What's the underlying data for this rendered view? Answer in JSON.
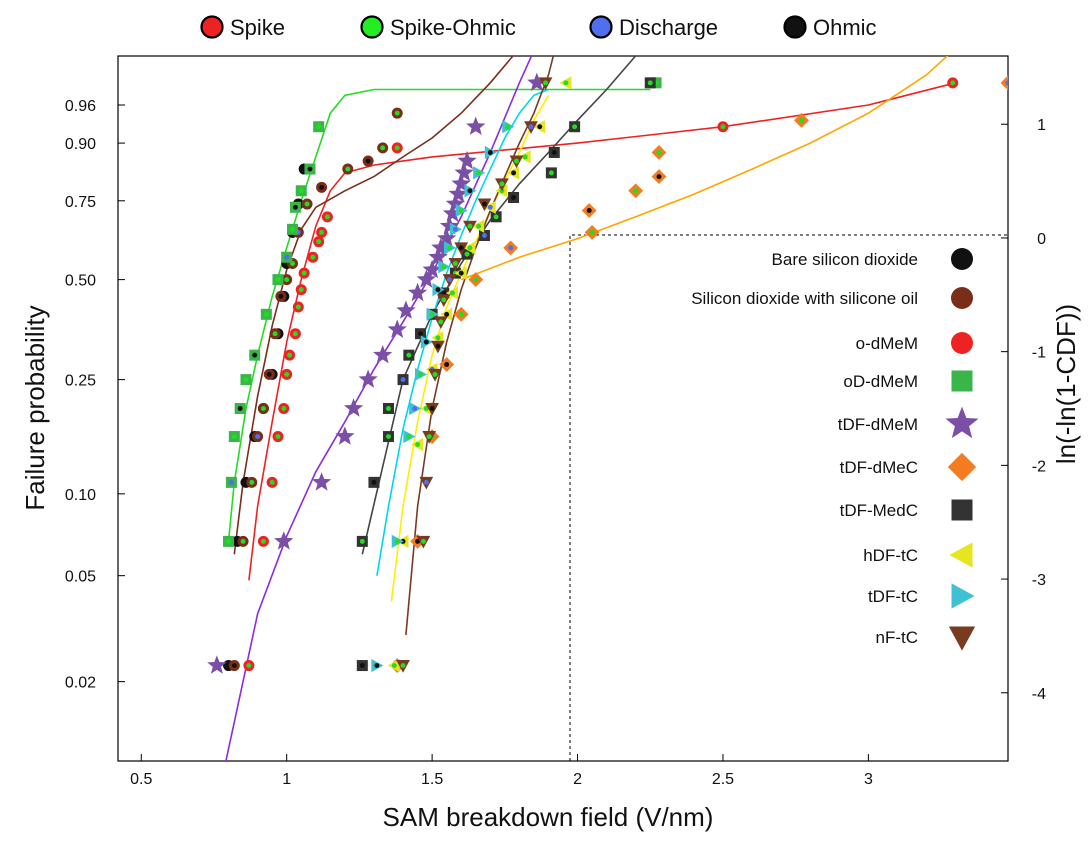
{
  "chart_data": {
    "type": "scatter",
    "xlabel": "SAM breakdown field (V/nm)",
    "ylabel": "Failure probability",
    "y2label": "ln(-ln(1-CDF))",
    "xlim": [
      0.42,
      3.48
    ],
    "xticks": [
      "0.5",
      "1",
      "1.5",
      "2",
      "2.5",
      "3"
    ],
    "yscale": "weibull",
    "yticks": [
      "0.02",
      "0.05",
      "0.10",
      "0.25",
      "0.50",
      "0.75",
      "0.90",
      "0.96"
    ],
    "y2lim": [
      -4.6,
      1.6
    ],
    "y2ticks": [
      "-4",
      "-3",
      "-2",
      "-1",
      "0",
      "1"
    ],
    "grid": false,
    "mode_legend": [
      {
        "label": "Spike",
        "color": "#ee2222"
      },
      {
        "label": "Spike-Ohmic",
        "color": "#22ee22"
      },
      {
        "label": "Discharge",
        "color": "#4f6fee"
      },
      {
        "label": "Ohmic",
        "color": "#111111"
      }
    ],
    "series": [
      {
        "name": "Bare silicon dioxide",
        "marker": "circle",
        "color": "#111111",
        "x": [
          0.8,
          0.83,
          0.86,
          0.89,
          0.92,
          0.95,
          0.97,
          0.99,
          1.0,
          1.02,
          1.04,
          1.06
        ],
        "y": [
          0.023,
          0.067,
          0.11,
          0.16,
          0.2,
          0.26,
          0.35,
          0.45,
          0.55,
          0.65,
          0.74,
          0.84
        ]
      },
      {
        "name": "Silicon dioxide with silicone oil",
        "marker": "circle",
        "color": "#7a2e1a",
        "x": [
          0.82,
          0.85,
          0.88,
          0.9,
          0.92,
          0.94,
          0.96,
          0.98,
          1.0,
          1.02,
          1.04,
          1.07,
          1.12,
          1.21,
          1.28,
          1.33,
          1.38
        ],
        "y": [
          0.023,
          0.067,
          0.11,
          0.16,
          0.2,
          0.26,
          0.35,
          0.45,
          0.5,
          0.55,
          0.65,
          0.74,
          0.79,
          0.84,
          0.86,
          0.89,
          0.95
        ]
      },
      {
        "name": "o-dMeM",
        "marker": "circle",
        "color": "#ee2222",
        "x": [
          0.87,
          0.92,
          0.95,
          0.97,
          0.99,
          1.0,
          1.01,
          1.03,
          1.04,
          1.05,
          1.06,
          1.09,
          1.11,
          1.12,
          1.14,
          1.38,
          2.5,
          3.29
        ],
        "y": [
          0.023,
          0.067,
          0.11,
          0.16,
          0.2,
          0.26,
          0.3,
          0.35,
          0.42,
          0.47,
          0.52,
          0.57,
          0.62,
          0.65,
          0.7,
          0.89,
          0.93,
          0.98
        ]
      },
      {
        "name": "oD-dMeM",
        "marker": "square",
        "color": "#3ab54a",
        "x": [
          0.8,
          0.81,
          0.82,
          0.84,
          0.86,
          0.89,
          0.93,
          0.97,
          1.0,
          1.02,
          1.03,
          1.05,
          1.08,
          1.11,
          2.27
        ],
        "y": [
          0.067,
          0.11,
          0.16,
          0.2,
          0.25,
          0.3,
          0.4,
          0.5,
          0.57,
          0.66,
          0.73,
          0.78,
          0.84,
          0.93,
          0.98
        ]
      },
      {
        "name": "tDF-dMeM",
        "marker": "star",
        "color": "#7b4fa6",
        "x": [
          0.76,
          0.99,
          1.12,
          1.2,
          1.23,
          1.28,
          1.33,
          1.38,
          1.41,
          1.45,
          1.48,
          1.5,
          1.52,
          1.53,
          1.55,
          1.56,
          1.57,
          1.58,
          1.59,
          1.6,
          1.61,
          1.62,
          1.65,
          1.86
        ],
        "y": [
          0.023,
          0.067,
          0.11,
          0.16,
          0.2,
          0.25,
          0.3,
          0.36,
          0.41,
          0.46,
          0.5,
          0.53,
          0.57,
          0.6,
          0.63,
          0.67,
          0.71,
          0.74,
          0.77,
          0.8,
          0.83,
          0.86,
          0.93,
          0.98
        ]
      },
      {
        "name": "tDF-dMeC",
        "marker": "diamond",
        "color": "#f47b20",
        "x": [
          1.38,
          1.45,
          1.5,
          1.55,
          1.6,
          1.65,
          1.77,
          2.05,
          2.04,
          2.2,
          2.28,
          2.28,
          2.77,
          3.48
        ],
        "y": [
          0.023,
          0.067,
          0.16,
          0.28,
          0.4,
          0.5,
          0.6,
          0.65,
          0.72,
          0.78,
          0.82,
          0.88,
          0.94,
          0.98
        ]
      },
      {
        "name": "tDF-MedC",
        "marker": "square",
        "color": "#333333",
        "x": [
          1.26,
          1.26,
          1.3,
          1.35,
          1.35,
          1.4,
          1.42,
          1.46,
          1.5,
          1.54,
          1.58,
          1.62,
          1.68,
          1.72,
          1.78,
          1.91,
          1.92,
          1.99,
          2.25
        ],
        "y": [
          0.023,
          0.067,
          0.11,
          0.16,
          0.2,
          0.25,
          0.3,
          0.35,
          0.4,
          0.46,
          0.52,
          0.58,
          0.64,
          0.7,
          0.76,
          0.83,
          0.88,
          0.93,
          0.98
        ]
      },
      {
        "name": "hDF-tC",
        "marker": "triangle-left",
        "color": "#e6e620",
        "x": [
          1.37,
          1.4,
          1.45,
          1.48,
          1.5,
          1.52,
          1.55,
          1.57,
          1.6,
          1.63,
          1.66,
          1.7,
          1.74,
          1.78,
          1.82,
          1.87,
          1.96
        ],
        "y": [
          0.023,
          0.067,
          0.15,
          0.2,
          0.27,
          0.34,
          0.4,
          0.46,
          0.52,
          0.6,
          0.67,
          0.73,
          0.78,
          0.83,
          0.87,
          0.93,
          0.98
        ]
      },
      {
        "name": "tDF-tC",
        "marker": "triangle-right",
        "color": "#3ec1d3",
        "x": [
          1.31,
          1.38,
          1.42,
          1.44,
          1.46,
          1.48,
          1.5,
          1.52,
          1.54,
          1.56,
          1.58,
          1.6,
          1.63,
          1.66,
          1.7,
          1.76
        ],
        "y": [
          0.023,
          0.067,
          0.16,
          0.2,
          0.26,
          0.33,
          0.4,
          0.47,
          0.54,
          0.6,
          0.66,
          0.72,
          0.78,
          0.83,
          0.88,
          0.93
        ]
      },
      {
        "name": "nF-tC",
        "marker": "triangle-down",
        "color": "#7a3a20",
        "x": [
          1.4,
          1.47,
          1.48,
          1.49,
          1.5,
          1.51,
          1.52,
          1.53,
          1.54,
          1.56,
          1.58,
          1.6,
          1.63,
          1.68,
          1.74,
          1.79,
          1.84,
          1.89
        ],
        "y": [
          0.023,
          0.067,
          0.11,
          0.16,
          0.2,
          0.26,
          0.32,
          0.38,
          0.44,
          0.5,
          0.55,
          0.6,
          0.67,
          0.74,
          0.8,
          0.86,
          0.93,
          0.98
        ]
      }
    ],
    "fit_lines": [
      {
        "color": "#22dd22",
        "x": [
          0.8,
          0.82,
          0.86,
          0.9,
          0.95,
          1.0,
          1.05,
          1.1,
          1.15,
          1.2,
          1.3,
          1.5,
          2.0,
          2.25
        ],
        "y": [
          0.067,
          0.11,
          0.2,
          0.3,
          0.45,
          0.6,
          0.75,
          0.87,
          0.95,
          0.97,
          0.975,
          0.975,
          0.975,
          0.975
        ]
      },
      {
        "color": "#ee2222",
        "x": [
          0.87,
          0.9,
          0.95,
          1.0,
          1.05,
          1.1,
          1.15,
          1.2,
          1.3,
          1.5,
          2.0,
          2.5,
          3.0,
          3.3
        ],
        "y": [
          0.048,
          0.09,
          0.18,
          0.33,
          0.5,
          0.67,
          0.78,
          0.83,
          0.85,
          0.87,
          0.9,
          0.93,
          0.96,
          0.98
        ]
      },
      {
        "color": "#7a2e1a",
        "x": [
          0.82,
          0.85,
          0.9,
          0.95,
          1.0,
          1.05,
          1.1,
          1.2,
          1.3,
          1.4,
          1.5,
          1.6,
          1.7,
          1.8,
          1.88
        ],
        "y": [
          0.06,
          0.11,
          0.22,
          0.37,
          0.53,
          0.66,
          0.73,
          0.78,
          0.82,
          0.87,
          0.91,
          0.95,
          0.98,
          0.995,
          0.999
        ]
      },
      {
        "color": "#8a2be2",
        "x": [
          0.77,
          0.9,
          1.0,
          1.1,
          1.2,
          1.3,
          1.4,
          1.5,
          1.6,
          1.7,
          1.8,
          1.9
        ],
        "y": [
          0.0078,
          0.036,
          0.07,
          0.12,
          0.18,
          0.27,
          0.38,
          0.52,
          0.7,
          0.88,
          0.98,
          0.999
        ]
      },
      {
        "color": "#444444",
        "x": [
          1.26,
          1.4,
          1.5,
          1.6,
          1.7,
          1.8,
          1.9,
          2.0,
          2.1,
          2.2,
          2.26
        ],
        "y": [
          0.06,
          0.25,
          0.4,
          0.55,
          0.69,
          0.8,
          0.88,
          0.94,
          0.975,
          0.993,
          0.999
        ]
      },
      {
        "color": "#ffee00",
        "x": [
          1.36,
          1.4,
          1.45,
          1.5,
          1.55,
          1.6,
          1.65,
          1.7,
          1.75,
          1.8,
          1.85,
          1.9
        ],
        "y": [
          0.04,
          0.09,
          0.18,
          0.3,
          0.42,
          0.52,
          0.62,
          0.72,
          0.81,
          0.88,
          0.94,
          0.97
        ]
      },
      {
        "color": "#00d7e6",
        "x": [
          1.31,
          1.35,
          1.4,
          1.45,
          1.5,
          1.55,
          1.6,
          1.65,
          1.7,
          1.75,
          1.8,
          1.85,
          1.9
        ],
        "y": [
          0.05,
          0.09,
          0.17,
          0.27,
          0.39,
          0.52,
          0.64,
          0.75,
          0.84,
          0.91,
          0.95,
          0.97,
          0.975
        ]
      },
      {
        "color": "#7a3a20",
        "x": [
          1.41,
          1.45,
          1.5,
          1.55,
          1.6,
          1.65,
          1.7,
          1.75,
          1.8,
          1.85,
          1.9,
          1.95
        ],
        "y": [
          0.03,
          0.09,
          0.2,
          0.33,
          0.47,
          0.6,
          0.72,
          0.82,
          0.9,
          0.95,
          0.985,
          0.999
        ]
      },
      {
        "color": "#ffa500",
        "x": [
          1.6,
          1.8,
          2.0,
          2.2,
          2.4,
          2.6,
          2.8,
          3.0,
          3.2,
          3.3
        ],
        "y": [
          0.5,
          0.57,
          0.63,
          0.7,
          0.77,
          0.84,
          0.9,
          0.95,
          0.985,
          0.995
        ]
      }
    ]
  }
}
